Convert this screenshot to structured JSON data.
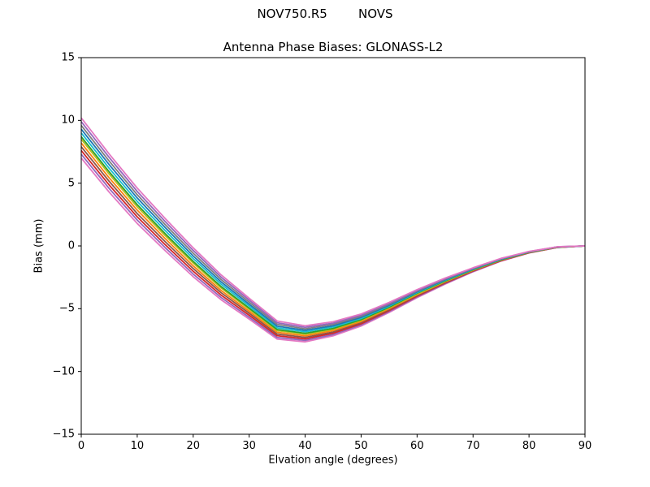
{
  "figure": {
    "suptitle": "NOV750.R5        NOVS",
    "background": "#ffffff",
    "frame_color": "#000000"
  },
  "chart_data": {
    "type": "line",
    "suptitle": "NOV750.R5        NOVS",
    "title": "Antenna Phase Biases: GLONASS-L2",
    "xlabel": "Elvation angle (degrees)",
    "ylabel": "Bias (mm)",
    "xlim": [
      0,
      90
    ],
    "ylim": [
      -15,
      15
    ],
    "xticks": [
      0,
      10,
      20,
      30,
      40,
      50,
      60,
      70,
      80,
      90
    ],
    "yticks": [
      -15,
      -10,
      -5,
      0,
      5,
      10,
      15
    ],
    "grid": false,
    "legend": "none",
    "x": [
      0,
      5,
      10,
      15,
      20,
      25,
      30,
      35,
      40,
      45,
      50,
      55,
      60,
      65,
      70,
      75,
      80,
      85,
      90
    ],
    "series": [
      {
        "name": "line-01",
        "color": "#e377c2",
        "values": [
          7.0,
          4.28,
          1.79,
          -0.38,
          -2.45,
          -4.29,
          -5.83,
          -7.42,
          -7.64,
          -7.16,
          -6.38,
          -5.3,
          -4.12,
          -3.04,
          -2.06,
          -1.21,
          -0.56,
          -0.13,
          0.0
        ]
      },
      {
        "name": "line-02",
        "color": "#9467bd",
        "values": [
          7.3,
          4.57,
          2.06,
          -0.14,
          -2.24,
          -4.11,
          -5.68,
          -7.29,
          -7.52,
          -7.06,
          -6.29,
          -5.23,
          -4.06,
          -3.0,
          -2.03,
          -1.19,
          -0.55,
          -0.13,
          0.0
        ]
      },
      {
        "name": "line-03",
        "color": "#d62728",
        "values": [
          7.6,
          4.85,
          2.32,
          0.1,
          -2.02,
          -3.92,
          -5.52,
          -7.15,
          -7.4,
          -6.95,
          -6.2,
          -5.15,
          -4.0,
          -2.95,
          -2.0,
          -1.17,
          -0.54,
          -0.12,
          0.0
        ]
      },
      {
        "name": "line-04",
        "color": "#8c564b",
        "values": [
          7.9,
          5.14,
          2.58,
          0.34,
          -1.8,
          -3.73,
          -5.36,
          -7.02,
          -7.28,
          -6.85,
          -6.11,
          -5.08,
          -3.94,
          -2.91,
          -1.97,
          -1.15,
          -0.53,
          -0.11,
          0.0
        ]
      },
      {
        "name": "line-05",
        "color": "#ff7f0e",
        "values": [
          8.2,
          5.42,
          2.85,
          0.58,
          -1.59,
          -3.55,
          -5.21,
          -6.88,
          -7.16,
          -6.74,
          -6.02,
          -5.0,
          -3.88,
          -2.86,
          -1.94,
          -1.13,
          -0.52,
          -0.11,
          0.0
        ]
      },
      {
        "name": "line-06",
        "color": "#bcbd22",
        "values": [
          8.5,
          5.71,
          3.11,
          0.82,
          -1.37,
          -3.36,
          -5.05,
          -6.75,
          -7.04,
          -6.64,
          -5.93,
          -4.93,
          -3.84,
          -2.82,
          -1.91,
          -1.11,
          -0.5,
          -0.1,
          0.0
        ]
      },
      {
        "name": "line-07",
        "color": "#2ca02c",
        "values": [
          8.7,
          5.9,
          3.29,
          0.98,
          -1.23,
          -3.24,
          -4.95,
          -6.66,
          -6.96,
          -6.57,
          -5.87,
          -4.88,
          -3.76,
          -2.79,
          -1.89,
          -1.1,
          -0.5,
          -0.1,
          0.0
        ]
      },
      {
        "name": "line-08",
        "color": "#17becf",
        "values": [
          9.0,
          6.18,
          3.55,
          1.22,
          -1.01,
          -3.05,
          -4.79,
          -6.52,
          -6.84,
          -6.46,
          -5.78,
          -4.8,
          -3.72,
          -2.74,
          -1.86,
          -1.07,
          -0.48,
          -0.09,
          0.0
        ]
      },
      {
        "name": "line-09",
        "color": "#1f77b4",
        "values": [
          9.3,
          6.47,
          3.82,
          1.46,
          -0.8,
          -2.87,
          -4.64,
          -6.39,
          -6.72,
          -6.36,
          -5.69,
          -4.73,
          -3.66,
          -2.7,
          -1.83,
          -1.05,
          -0.47,
          -0.09,
          0.0
        ]
      },
      {
        "name": "line-10",
        "color": "#7f7f7f",
        "values": [
          9.6,
          6.75,
          4.08,
          1.7,
          -0.58,
          -2.68,
          -4.48,
          -6.25,
          -6.6,
          -6.25,
          -5.6,
          -4.65,
          -3.6,
          -2.65,
          -1.8,
          -1.03,
          -0.46,
          -0.08,
          0.0
        ]
      },
      {
        "name": "line-11",
        "color": "#9467bd",
        "values": [
          9.9,
          7.04,
          4.34,
          1.94,
          -0.36,
          -2.49,
          -4.32,
          -6.12,
          -6.48,
          -6.15,
          -5.51,
          -4.58,
          -3.54,
          -2.61,
          -1.77,
          -1.01,
          -0.45,
          -0.07,
          0.0
        ]
      },
      {
        "name": "line-12",
        "color": "#e377c2",
        "values": [
          10.2,
          7.32,
          4.61,
          2.18,
          -0.15,
          -2.31,
          -4.17,
          -5.98,
          -6.36,
          -6.04,
          -5.42,
          -4.5,
          -3.48,
          -2.56,
          -1.74,
          -0.99,
          -0.44,
          -0.07,
          0.0
        ]
      }
    ]
  }
}
